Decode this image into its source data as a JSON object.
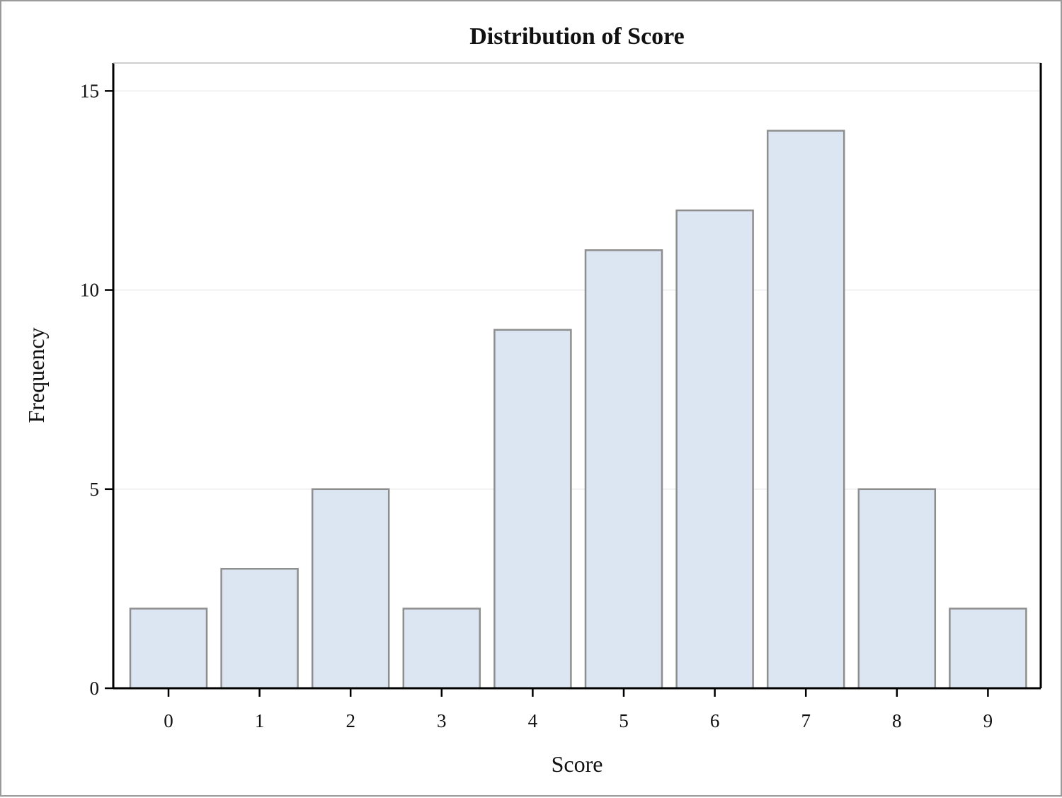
{
  "chart_data": {
    "type": "bar",
    "title": "Distribution of Score",
    "xlabel": "Score",
    "ylabel": "Frequency",
    "categories": [
      "0",
      "1",
      "2",
      "3",
      "4",
      "5",
      "6",
      "7",
      "8",
      "9"
    ],
    "values": [
      2,
      3,
      5,
      2,
      9,
      11,
      12,
      14,
      5,
      2
    ],
    "ylim": [
      0,
      15.7
    ],
    "yticks": [
      0,
      5,
      10,
      15
    ],
    "ytick_labels": [
      "0",
      "5",
      "10",
      "15"
    ],
    "grid": true,
    "bar_color": "#dce6f2",
    "bar_edge_color": "#8e8e8e",
    "axis_color": "#000000",
    "grid_color": "#ececec"
  }
}
